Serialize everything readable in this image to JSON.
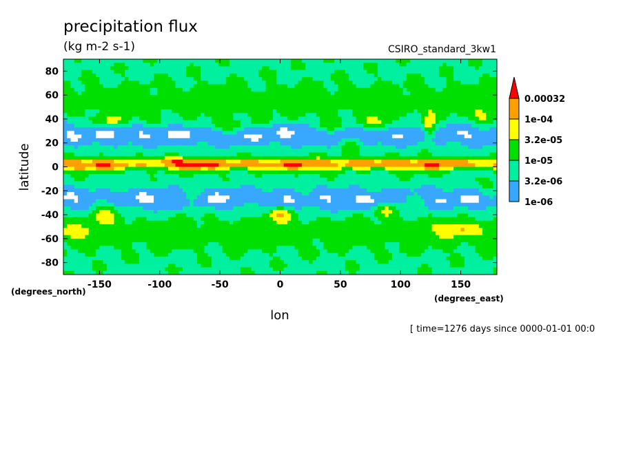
{
  "chart_data": {
    "type": "contour",
    "title": "precipitation flux",
    "units": "(kg m-2 s-1)",
    "run_label": "CSIRO_standard_3kw1",
    "xlabel": "lon",
    "ylabel": "latitude",
    "x_unit_label": "(degrees_east)",
    "y_unit_label": "(degrees_north)",
    "time_label": "[ time=1276 days since 0000-01-01 00:0",
    "xlim": [
      -180,
      180
    ],
    "ylim": [
      -90,
      90
    ],
    "x_ticks": [
      -150,
      -100,
      -50,
      0,
      50,
      100,
      150
    ],
    "x_tick_labels": [
      "-150",
      "-100",
      "-50",
      "0",
      "50",
      "100",
      "150"
    ],
    "y_ticks": [
      80,
      60,
      40,
      20,
      0,
      -20,
      -40,
      -60,
      -80
    ],
    "y_tick_labels": [
      "80",
      "60",
      "40",
      "20",
      "0",
      "-20",
      "-40",
      "-60",
      "-80"
    ],
    "levels": [
      1e-06,
      3.2e-06,
      1e-05,
      3.2e-05,
      0.0001,
      0.00032
    ],
    "level_labels": [
      "0.00032",
      "1e-04",
      "3.2e-05",
      "1e-05",
      "3.2e-06",
      "1e-06"
    ],
    "colors": [
      "#ffffff",
      "#38a8ff",
      "#00f0a0",
      "#00e000",
      "#ffff00",
      "#ffa000",
      "#ff0000"
    ],
    "legend_placement": "right",
    "grid": false
  }
}
